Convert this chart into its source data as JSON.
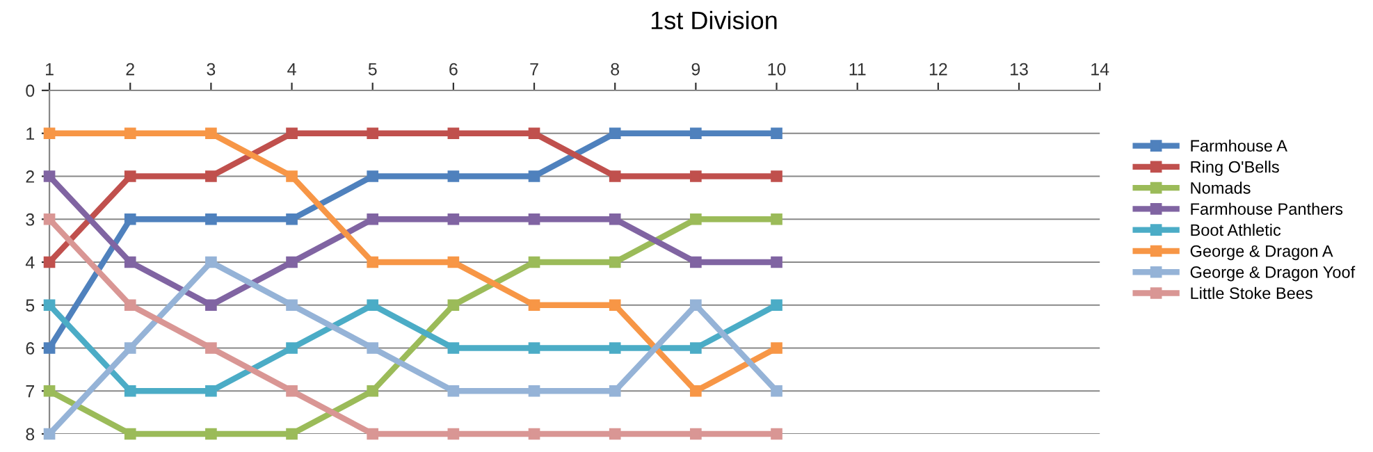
{
  "chart_data": {
    "type": "line",
    "title": "1st Division",
    "x": [
      1,
      2,
      3,
      4,
      5,
      6,
      7,
      8,
      9,
      10
    ],
    "xlim": [
      1,
      14
    ],
    "xticks": [
      1,
      2,
      3,
      4,
      5,
      6,
      7,
      8,
      9,
      10,
      11,
      12,
      13,
      14
    ],
    "ylim": [
      8,
      0
    ],
    "yticks": [
      0,
      1,
      2,
      3,
      4,
      5,
      6,
      7,
      8
    ],
    "grid": "y",
    "legend": "right",
    "marker": "square",
    "line_style": "solid",
    "series": [
      {
        "name": "Farmhouse A",
        "color": "#4f81bd",
        "values": [
          6,
          3,
          3,
          3,
          2,
          2,
          2,
          1,
          1,
          1
        ]
      },
      {
        "name": "Ring O'Bells",
        "color": "#c0504d",
        "values": [
          4,
          2,
          2,
          1,
          1,
          1,
          1,
          2,
          2,
          2
        ]
      },
      {
        "name": "Nomads",
        "color": "#9bbb59",
        "values": [
          7,
          8,
          8,
          8,
          7,
          5,
          4,
          4,
          3,
          3
        ]
      },
      {
        "name": "Farmhouse Panthers",
        "color": "#8064a2",
        "values": [
          2,
          4,
          5,
          4,
          3,
          3,
          3,
          3,
          4,
          4
        ]
      },
      {
        "name": "Boot Athletic",
        "color": "#4bacc6",
        "values": [
          5,
          7,
          7,
          6,
          5,
          6,
          6,
          6,
          6,
          5
        ]
      },
      {
        "name": "George & Dragon A",
        "color": "#f79646",
        "values": [
          1,
          1,
          1,
          2,
          4,
          4,
          5,
          5,
          7,
          6
        ]
      },
      {
        "name": "George & Dragon Yoof",
        "color": "#95b3d7",
        "values": [
          8,
          6,
          4,
          5,
          6,
          7,
          7,
          7,
          5,
          7
        ]
      },
      {
        "name": "Little Stoke Bees",
        "color": "#d99694",
        "values": [
          3,
          5,
          6,
          7,
          8,
          8,
          8,
          8,
          8,
          8
        ]
      }
    ]
  }
}
